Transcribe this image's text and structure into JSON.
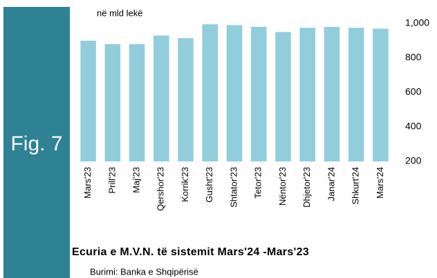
{
  "chart_data": {
    "type": "bar",
    "figure_label": "Fig. 7",
    "ylabel": "në mld lekë",
    "title": "Ecuria e M.V.N. të sistemit Mars'24 -Mars'23",
    "source": "Burimi: Banka e Shqipërisë",
    "categories": [
      "Mars'23",
      "Prill'23",
      "Maj'23",
      "Qershor'23",
      "Korrik'23",
      "Gusht'23",
      "Shtator'23",
      "Tetor'23",
      "Nëntor'23",
      "Dhjetor'23",
      "Janar'24",
      "Shkurt'24",
      "Mars'24"
    ],
    "values": [
      900,
      880,
      880,
      930,
      915,
      995,
      990,
      980,
      950,
      975,
      980,
      975,
      970
    ],
    "color": "#92cddc",
    "ylim": [
      200,
      1000
    ],
    "yticks": [
      200,
      400,
      600,
      800,
      {
        "value": 1000,
        "label": "1,000"
      }
    ],
    "grid": false
  }
}
